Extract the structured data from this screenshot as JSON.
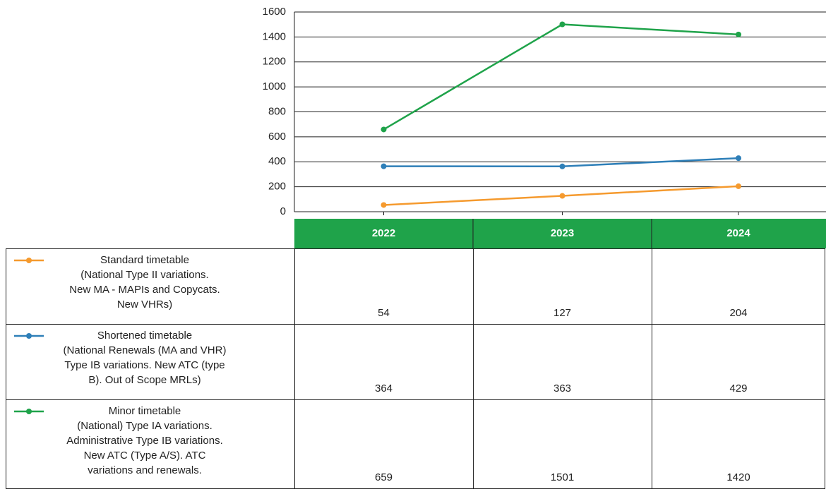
{
  "chart_data": {
    "type": "line",
    "categories": [
      "2022",
      "2023",
      "2024"
    ],
    "series": [
      {
        "name": "Standard timetable\n(National Type II variations.\nNew MA - MAPIs and Copycats.\nNew VHRs)",
        "color": "#f59a2e",
        "values": [
          54,
          127,
          204
        ]
      },
      {
        "name": "Shortened timetable\n(National Renewals (MA and VHR)\nType IB variations. New ATC (type\nB). Out of Scope MRLs)",
        "color": "#2e7fb8",
        "values": [
          364,
          363,
          429
        ]
      },
      {
        "name": "Minor timetable\n(National) Type IA variations.\nAdministrative Type IB variations.\nNew ATC (Type A/S). ATC\nvariations and renewals.",
        "color": "#1fa34a",
        "values": [
          659,
          1501,
          1420
        ]
      }
    ],
    "ylim": [
      0,
      1600
    ],
    "yticks": [
      0,
      200,
      400,
      600,
      800,
      1000,
      1200,
      1400,
      1600
    ],
    "grid": true,
    "header_color": "#1fa34a"
  }
}
